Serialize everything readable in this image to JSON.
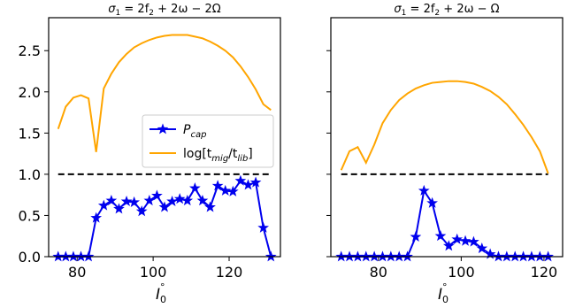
{
  "chart_data": [
    {
      "type": "line",
      "title_math": {
        "lhs": "σ",
        "lhs_sub": "1",
        "rhs": " = 2f",
        "rhs_sub": "2",
        "rest": " + 2ω − 2Ω"
      },
      "xlabel": {
        "base": "I",
        "sub": "0",
        "sup": "°"
      },
      "ylabel": "",
      "xlim": [
        72.5,
        133.5
      ],
      "ylim": [
        0,
        2.9
      ],
      "xticks": [
        "80",
        "100",
        "120"
      ],
      "yticks": [
        "0.0",
        "0.5",
        "1.0",
        "1.5",
        "2.0",
        "2.5"
      ],
      "hline": {
        "y": 1.0,
        "style": "dashed",
        "color": "#000000"
      },
      "series": [
        {
          "name": "P_cap",
          "color": "#0000ee",
          "marker": "star",
          "x": [
            75,
            77,
            79,
            81,
            83,
            85,
            87,
            89,
            91,
            93,
            95,
            97,
            99,
            101,
            103,
            105,
            107,
            109,
            111,
            113,
            115,
            117,
            119,
            121,
            123,
            125,
            127,
            129,
            131
          ],
          "y": [
            0,
            0,
            0,
            0,
            0,
            0.47,
            0.62,
            0.68,
            0.58,
            0.67,
            0.66,
            0.55,
            0.68,
            0.74,
            0.6,
            0.67,
            0.7,
            0.68,
            0.83,
            0.68,
            0.6,
            0.86,
            0.8,
            0.79,
            0.92,
            0.87,
            0.9,
            0.35,
            0
          ]
        },
        {
          "name": "log[t_mig/t_lib]",
          "color": "#ffa500",
          "marker": "none",
          "x": [
            75,
            77,
            79,
            81,
            83,
            85,
            87,
            89,
            91,
            93,
            95,
            97,
            99,
            101,
            103,
            105,
            107,
            109,
            111,
            113,
            115,
            117,
            119,
            121,
            123,
            125,
            127,
            129,
            131
          ],
          "y": [
            1.55,
            1.82,
            1.93,
            1.96,
            1.92,
            1.27,
            2.04,
            2.22,
            2.36,
            2.46,
            2.54,
            2.59,
            2.63,
            2.66,
            2.68,
            2.69,
            2.69,
            2.69,
            2.67,
            2.65,
            2.61,
            2.56,
            2.5,
            2.42,
            2.31,
            2.18,
            2.03,
            1.85,
            1.78
          ]
        }
      ],
      "legend": {
        "placement": "center-right",
        "entries": [
          {
            "label": {
              "base": "P",
              "sub": "cap"
            },
            "color": "#0000ee",
            "marker": "star"
          },
          {
            "label": {
              "pre": "log[t",
              "sub1": "mig",
              "mid": "/t",
              "sub2": "lib",
              "post": "]"
            },
            "color": "#ffa500",
            "marker": "none"
          }
        ]
      }
    },
    {
      "type": "line",
      "title_math": {
        "lhs": "σ",
        "lhs_sub": "1",
        "rhs": " = 2f",
        "rhs_sub": "2",
        "rest": " + 2ω − Ω"
      },
      "xlabel": {
        "base": "I",
        "sub": "0",
        "sup": "°"
      },
      "ylabel": "",
      "xlim": [
        68.5,
        124.5
      ],
      "ylim": [
        0,
        2.9
      ],
      "xticks": [
        "80",
        "100",
        "120"
      ],
      "yticks": [],
      "hline": {
        "y": 1.0,
        "style": "dashed",
        "color": "#000000"
      },
      "series": [
        {
          "name": "P_cap",
          "color": "#0000ee",
          "marker": "star",
          "x": [
            71,
            73,
            75,
            77,
            79,
            81,
            83,
            85,
            87,
            89,
            91,
            93,
            95,
            97,
            99,
            101,
            103,
            105,
            107,
            109,
            111,
            113,
            115,
            117,
            119,
            121
          ],
          "y": [
            0,
            0,
            0,
            0,
            0,
            0,
            0,
            0,
            0,
            0.24,
            0.8,
            0.65,
            0.25,
            0.13,
            0.21,
            0.19,
            0.18,
            0.1,
            0.03,
            0,
            0,
            0,
            0,
            0,
            0,
            0
          ]
        },
        {
          "name": "log[t_mig/t_lib]",
          "color": "#ffa500",
          "marker": "none",
          "x": [
            71,
            73,
            75,
            77,
            79,
            81,
            83,
            85,
            87,
            89,
            91,
            93,
            95,
            97,
            99,
            101,
            103,
            105,
            107,
            109,
            111,
            113,
            115,
            117,
            119,
            121
          ],
          "y": [
            1.05,
            1.28,
            1.33,
            1.14,
            1.36,
            1.62,
            1.78,
            1.9,
            1.98,
            2.04,
            2.08,
            2.11,
            2.12,
            2.13,
            2.13,
            2.12,
            2.1,
            2.06,
            2.01,
            1.94,
            1.85,
            1.73,
            1.6,
            1.45,
            1.28,
            1.01
          ]
        }
      ]
    }
  ]
}
